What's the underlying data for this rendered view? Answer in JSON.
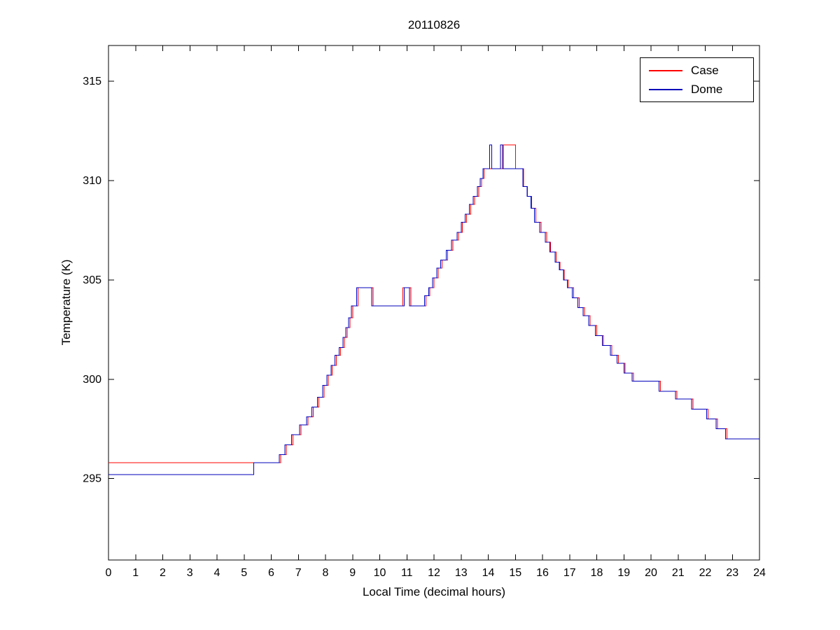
{
  "title": "20110826",
  "xlabel": "Local Time (decimal hours)",
  "ylabel": "Temperature (K)",
  "legend": [
    {
      "label": "Case",
      "color": "#ff0000"
    },
    {
      "label": "Dome",
      "color": "#0000bb"
    }
  ],
  "chart_data": {
    "type": "line",
    "step": "after",
    "title": "20110826",
    "xlabel": "Local Time (decimal hours)",
    "ylabel": "Temperature (K)",
    "xlim": [
      0,
      24
    ],
    "ylim": [
      290.9,
      316.8
    ],
    "xticks": [
      0,
      1,
      2,
      3,
      4,
      5,
      6,
      7,
      8,
      9,
      10,
      11,
      12,
      13,
      14,
      15,
      16,
      17,
      18,
      19,
      20,
      21,
      22,
      23,
      24
    ],
    "yticks": [
      295,
      300,
      305,
      310,
      315
    ],
    "grid": false,
    "legend_position": "top-right",
    "axis_color": "#000000",
    "series": [
      {
        "name": "Case",
        "color": "#ff0000",
        "points": [
          [
            0,
            295.8
          ],
          [
            6.35,
            296.2
          ],
          [
            6.55,
            296.7
          ],
          [
            6.8,
            297.2
          ],
          [
            7.1,
            297.7
          ],
          [
            7.35,
            298.1
          ],
          [
            7.55,
            298.6
          ],
          [
            7.75,
            299.1
          ],
          [
            7.95,
            299.7
          ],
          [
            8.1,
            300.2
          ],
          [
            8.25,
            300.7
          ],
          [
            8.4,
            301.2
          ],
          [
            8.55,
            301.6
          ],
          [
            8.7,
            302.1
          ],
          [
            8.8,
            302.6
          ],
          [
            8.9,
            303.1
          ],
          [
            9.0,
            303.7
          ],
          [
            9.2,
            304.6
          ],
          [
            9.75,
            303.7
          ],
          [
            10.85,
            304.6
          ],
          [
            11.15,
            303.7
          ],
          [
            11.7,
            304.2
          ],
          [
            11.85,
            304.6
          ],
          [
            12.0,
            305.1
          ],
          [
            12.15,
            305.6
          ],
          [
            12.3,
            306.0
          ],
          [
            12.5,
            306.5
          ],
          [
            12.7,
            307.0
          ],
          [
            12.9,
            307.4
          ],
          [
            13.05,
            307.9
          ],
          [
            13.2,
            308.3
          ],
          [
            13.35,
            308.8
          ],
          [
            13.5,
            309.2
          ],
          [
            13.65,
            309.7
          ],
          [
            13.75,
            310.1
          ],
          [
            13.85,
            310.6
          ],
          [
            14.55,
            311.8
          ],
          [
            15.0,
            310.6
          ],
          [
            15.3,
            309.7
          ],
          [
            15.45,
            309.2
          ],
          [
            15.6,
            308.6
          ],
          [
            15.75,
            307.9
          ],
          [
            15.95,
            307.4
          ],
          [
            16.15,
            306.9
          ],
          [
            16.3,
            306.4
          ],
          [
            16.5,
            305.9
          ],
          [
            16.65,
            305.5
          ],
          [
            16.8,
            305.0
          ],
          [
            16.95,
            304.6
          ],
          [
            17.15,
            304.1
          ],
          [
            17.35,
            303.6
          ],
          [
            17.55,
            303.2
          ],
          [
            17.75,
            302.7
          ],
          [
            18.0,
            302.2
          ],
          [
            18.25,
            301.7
          ],
          [
            18.55,
            301.2
          ],
          [
            18.8,
            300.8
          ],
          [
            19.05,
            300.3
          ],
          [
            19.35,
            299.9
          ],
          [
            20.35,
            299.4
          ],
          [
            20.95,
            299.0
          ],
          [
            21.55,
            298.5
          ],
          [
            22.1,
            298.0
          ],
          [
            22.45,
            297.5
          ],
          [
            22.8,
            297.0
          ]
        ]
      },
      {
        "name": "Dome",
        "color": "#0000bb",
        "points": [
          [
            0,
            295.2
          ],
          [
            5.35,
            295.8
          ],
          [
            6.3,
            296.2
          ],
          [
            6.5,
            296.7
          ],
          [
            6.75,
            297.2
          ],
          [
            7.05,
            297.7
          ],
          [
            7.3,
            298.1
          ],
          [
            7.5,
            298.6
          ],
          [
            7.7,
            299.1
          ],
          [
            7.9,
            299.7
          ],
          [
            8.05,
            300.2
          ],
          [
            8.2,
            300.7
          ],
          [
            8.35,
            301.2
          ],
          [
            8.5,
            301.6
          ],
          [
            8.65,
            302.1
          ],
          [
            8.75,
            302.6
          ],
          [
            8.85,
            303.1
          ],
          [
            8.95,
            303.7
          ],
          [
            9.15,
            304.6
          ],
          [
            9.7,
            303.7
          ],
          [
            10.9,
            304.6
          ],
          [
            11.1,
            303.7
          ],
          [
            11.65,
            304.2
          ],
          [
            11.8,
            304.6
          ],
          [
            11.95,
            305.1
          ],
          [
            12.1,
            305.6
          ],
          [
            12.25,
            306.0
          ],
          [
            12.45,
            306.5
          ],
          [
            12.65,
            307.0
          ],
          [
            12.85,
            307.4
          ],
          [
            13.0,
            307.9
          ],
          [
            13.15,
            308.3
          ],
          [
            13.3,
            308.8
          ],
          [
            13.45,
            309.2
          ],
          [
            13.6,
            309.7
          ],
          [
            13.7,
            310.1
          ],
          [
            13.8,
            310.6
          ],
          [
            14.05,
            311.8
          ],
          [
            14.13,
            310.6
          ],
          [
            14.45,
            311.8
          ],
          [
            14.53,
            310.6
          ],
          [
            15.28,
            309.7
          ],
          [
            15.43,
            309.2
          ],
          [
            15.58,
            308.6
          ],
          [
            15.7,
            307.9
          ],
          [
            15.9,
            307.4
          ],
          [
            16.1,
            306.9
          ],
          [
            16.27,
            306.4
          ],
          [
            16.47,
            305.9
          ],
          [
            16.62,
            305.5
          ],
          [
            16.77,
            305.0
          ],
          [
            16.92,
            304.6
          ],
          [
            17.1,
            304.1
          ],
          [
            17.3,
            303.6
          ],
          [
            17.5,
            303.2
          ],
          [
            17.7,
            302.7
          ],
          [
            17.95,
            302.2
          ],
          [
            18.2,
            301.7
          ],
          [
            18.5,
            301.2
          ],
          [
            18.75,
            300.8
          ],
          [
            19.0,
            300.3
          ],
          [
            19.3,
            299.9
          ],
          [
            20.3,
            299.4
          ],
          [
            20.9,
            299.0
          ],
          [
            21.5,
            298.5
          ],
          [
            22.05,
            298.0
          ],
          [
            22.4,
            297.5
          ],
          [
            22.75,
            297.0
          ]
        ]
      }
    ]
  }
}
